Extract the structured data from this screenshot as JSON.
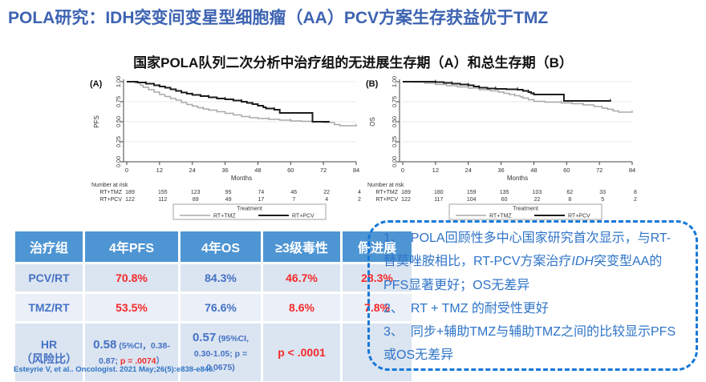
{
  "slide": {
    "title": "POLA研究：IDH突变间变星型细胞瘤（AA）PCV方案生存获益优于TMZ",
    "subtitle": "国家POLA队列二次分析中治疗组的无进展生存期（A）和总生存期（B）",
    "citation": "Esteyrie V, et al.. Oncologist. 2021 May;26(5):e838-e846."
  },
  "colors": {
    "title_blue": "#3D63B2",
    "header_blue": "#4E95D3",
    "value_red": "#F42A2A",
    "value_blue": "#4472C4",
    "dash_blue": "#1778D9",
    "note_blue": "#2F74C8",
    "cite_blue": "#2E74C5",
    "curve_gray": "#A8A8A8",
    "curve_black": "#1C1C1C"
  },
  "chart_data": [
    {
      "type": "line",
      "variant": "kaplan-meier",
      "panel_label": "(A)",
      "xlabel": "Months",
      "ylabel": "PFS",
      "xlim": [
        0,
        84
      ],
      "ylim": [
        0,
        1
      ],
      "xticks": [
        0,
        12,
        24,
        36,
        48,
        60,
        72,
        84
      ],
      "yticks": [
        "0.00",
        "0.25",
        "0.50",
        "0.75",
        "1.00"
      ],
      "grid": true,
      "legend_title": "Treatment",
      "series": [
        {
          "name": "RT+TMZ",
          "color": "#A8A8A8",
          "width": 1.4,
          "points": [
            [
              0,
              1.0
            ],
            [
              3,
              0.985
            ],
            [
              5,
              0.955
            ],
            [
              6,
              0.93
            ],
            [
              8,
              0.9
            ],
            [
              10,
              0.87
            ],
            [
              12,
              0.84
            ],
            [
              14,
              0.815
            ],
            [
              16,
              0.79
            ],
            [
              18,
              0.77
            ],
            [
              20,
              0.74
            ],
            [
              22,
              0.715
            ],
            [
              24,
              0.695
            ],
            [
              26,
              0.675
            ],
            [
              28,
              0.66
            ],
            [
              30,
              0.645
            ],
            [
              33,
              0.625
            ],
            [
              36,
              0.605
            ],
            [
              39,
              0.585
            ],
            [
              42,
              0.565
            ],
            [
              45,
              0.55
            ],
            [
              48,
              0.54
            ],
            [
              52,
              0.53
            ],
            [
              56,
              0.52
            ],
            [
              60,
              0.51
            ],
            [
              64,
              0.505
            ],
            [
              68,
              0.5
            ],
            [
              72,
              0.49
            ],
            [
              76,
              0.465
            ],
            [
              78,
              0.45
            ],
            [
              84,
              0.445
            ]
          ]
        },
        {
          "name": "RT+PCV",
          "color": "#1C1C1C",
          "width": 2,
          "points": [
            [
              0,
              1.0
            ],
            [
              4,
              0.99
            ],
            [
              7,
              0.975
            ],
            [
              10,
              0.955
            ],
            [
              12,
              0.94
            ],
            [
              14,
              0.925
            ],
            [
              16,
              0.905
            ],
            [
              18,
              0.885
            ],
            [
              20,
              0.865
            ],
            [
              22,
              0.85
            ],
            [
              24,
              0.835
            ],
            [
              27,
              0.82
            ],
            [
              30,
              0.805
            ],
            [
              33,
              0.79
            ],
            [
              36,
              0.78
            ],
            [
              39,
              0.765
            ],
            [
              42,
              0.75
            ],
            [
              44,
              0.735
            ],
            [
              46,
              0.72
            ],
            [
              48,
              0.7
            ],
            [
              50,
              0.68
            ],
            [
              51,
              0.665
            ],
            [
              54,
              0.65
            ],
            [
              56,
              0.61
            ],
            [
              68,
              0.5
            ],
            [
              74,
              0.495
            ]
          ]
        }
      ],
      "number_at_risk": {
        "label": "Number at risk",
        "rows": [
          {
            "name": "RT+TMZ",
            "values": [
              189,
              155,
              123,
              95,
              74,
              46,
              22,
              4
            ]
          },
          {
            "name": "RT+PCV",
            "values": [
              122,
              112,
              89,
              49,
              17,
              7,
              4,
              2
            ]
          }
        ]
      }
    },
    {
      "type": "line",
      "variant": "kaplan-meier",
      "panel_label": "(B)",
      "xlabel": "Months",
      "ylabel": "OS",
      "xlim": [
        0,
        84
      ],
      "ylim": [
        0,
        1
      ],
      "xticks": [
        0,
        12,
        24,
        36,
        48,
        60,
        72,
        84
      ],
      "yticks": [
        "0.00",
        "0.25",
        "0.50",
        "0.75",
        "1.00"
      ],
      "grid": true,
      "legend_title": "Treatment",
      "series": [
        {
          "name": "RT+TMZ",
          "color": "#A8A8A8",
          "width": 1.4,
          "points": [
            [
              0,
              1.0
            ],
            [
              4,
              0.995
            ],
            [
              8,
              0.98
            ],
            [
              12,
              0.965
            ],
            [
              16,
              0.95
            ],
            [
              20,
              0.935
            ],
            [
              24,
              0.92
            ],
            [
              28,
              0.9
            ],
            [
              32,
              0.885
            ],
            [
              35,
              0.87
            ],
            [
              37,
              0.855
            ],
            [
              39,
              0.84
            ],
            [
              41,
              0.825
            ],
            [
              43,
              0.81
            ],
            [
              44,
              0.795
            ],
            [
              46,
              0.775
            ],
            [
              48,
              0.755
            ],
            [
              52,
              0.745
            ],
            [
              58,
              0.735
            ],
            [
              62,
              0.725
            ],
            [
              66,
              0.71
            ],
            [
              70,
              0.69
            ],
            [
              73,
              0.67
            ],
            [
              75,
              0.655
            ],
            [
              77,
              0.635
            ],
            [
              79,
              0.62
            ],
            [
              84,
              0.615
            ]
          ]
        },
        {
          "name": "RT+PCV",
          "color": "#1C1C1C",
          "width": 2,
          "points": [
            [
              0,
              1.0
            ],
            [
              8,
              1.0
            ],
            [
              12,
              0.995
            ],
            [
              15,
              0.985
            ],
            [
              18,
              0.975
            ],
            [
              21,
              0.965
            ],
            [
              24,
              0.955
            ],
            [
              26,
              0.94
            ],
            [
              28,
              0.925
            ],
            [
              31,
              0.915
            ],
            [
              34,
              0.91
            ],
            [
              38,
              0.905
            ],
            [
              42,
              0.9
            ],
            [
              44,
              0.885
            ],
            [
              46,
              0.87
            ],
            [
              47,
              0.855
            ],
            [
              48,
              0.84
            ],
            [
              59,
              0.76
            ],
            [
              76,
              0.755
            ]
          ]
        }
      ],
      "number_at_risk": {
        "label": "Number at risk",
        "rows": [
          {
            "name": "RT+TMZ",
            "values": [
              189,
              180,
              159,
              135,
              103,
              62,
              33,
              8
            ]
          },
          {
            "name": "RT+PCV",
            "values": [
              122,
              117,
              104,
              60,
              22,
              8,
              5,
              2
            ]
          }
        ]
      }
    }
  ],
  "table": {
    "headers": [
      "治疗组",
      "4年PFS",
      "4年OS",
      "≥3级毒性",
      "假进展"
    ],
    "rows": [
      {
        "label": "PCV/RT",
        "pfs": "70.8%",
        "os": "84.3%",
        "tox": "46.7%",
        "fake": "28.3%"
      },
      {
        "label": "TMZ/RT",
        "pfs": "53.5%",
        "os": "76.6%",
        "tox": "8.6%",
        "fake": "7.8%"
      }
    ],
    "hr": {
      "label_line1": "HR",
      "label_line2": "（风险比）",
      "pfs": {
        "value": "0.58",
        "ci": " (5%CI，0.38-0.87; ",
        "p": "p = .0074",
        "close": "）"
      },
      "os": {
        "value": "0.57",
        "ci": " (95%CI, 0.30-1.05; p = 0.0675)"
      },
      "tox_p": "p < .0001",
      "fake": ""
    }
  },
  "notes": {
    "items": [
      {
        "num": "1、",
        "pre": "POLA回顾性多中心国家研究首次显示，与RT-替莫唑胺相比，RT-PCV方案治疗",
        "em": "IDH",
        "post": "突变型AA的PFS显著更好；OS无差异"
      },
      {
        "num": "2、",
        "pre": "RT + TMZ 的耐受性更好",
        "em": "",
        "post": ""
      },
      {
        "num": "3、",
        "pre": "同步+辅助TMZ与辅助TMZ之间的比较显示PFS或OS无差异",
        "em": "",
        "post": ""
      }
    ]
  }
}
